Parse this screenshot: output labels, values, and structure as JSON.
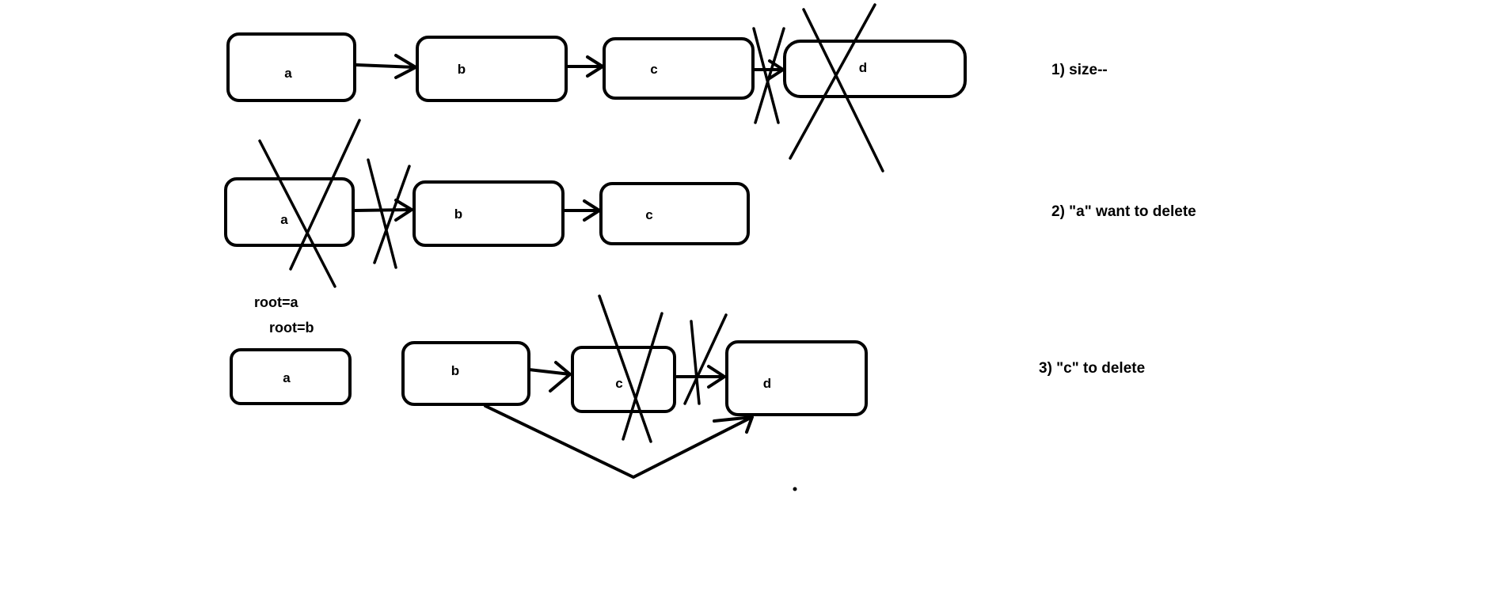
{
  "steps": [
    {
      "label": "1) size--",
      "nodes": [
        "a",
        "b",
        "c",
        "d"
      ],
      "crossed_nodes": [
        "d"
      ],
      "crossed_links": [
        "c->d"
      ]
    },
    {
      "label": "2) \"a\" want to delete",
      "nodes": [
        "a",
        "b",
        "c"
      ],
      "crossed_nodes": [
        "a"
      ],
      "crossed_links": [
        "a->b"
      ]
    },
    {
      "label": "3) \"c\" to delete",
      "nodes": [
        "a",
        "b",
        "c",
        "d"
      ],
      "crossed_nodes": [
        "c"
      ],
      "crossed_links": [
        "c->d"
      ],
      "bypass_link": "b->d"
    }
  ],
  "root_labels": [
    "root=a",
    "root=b"
  ],
  "colors": {
    "stroke": "#000000",
    "background": "#ffffff"
  }
}
